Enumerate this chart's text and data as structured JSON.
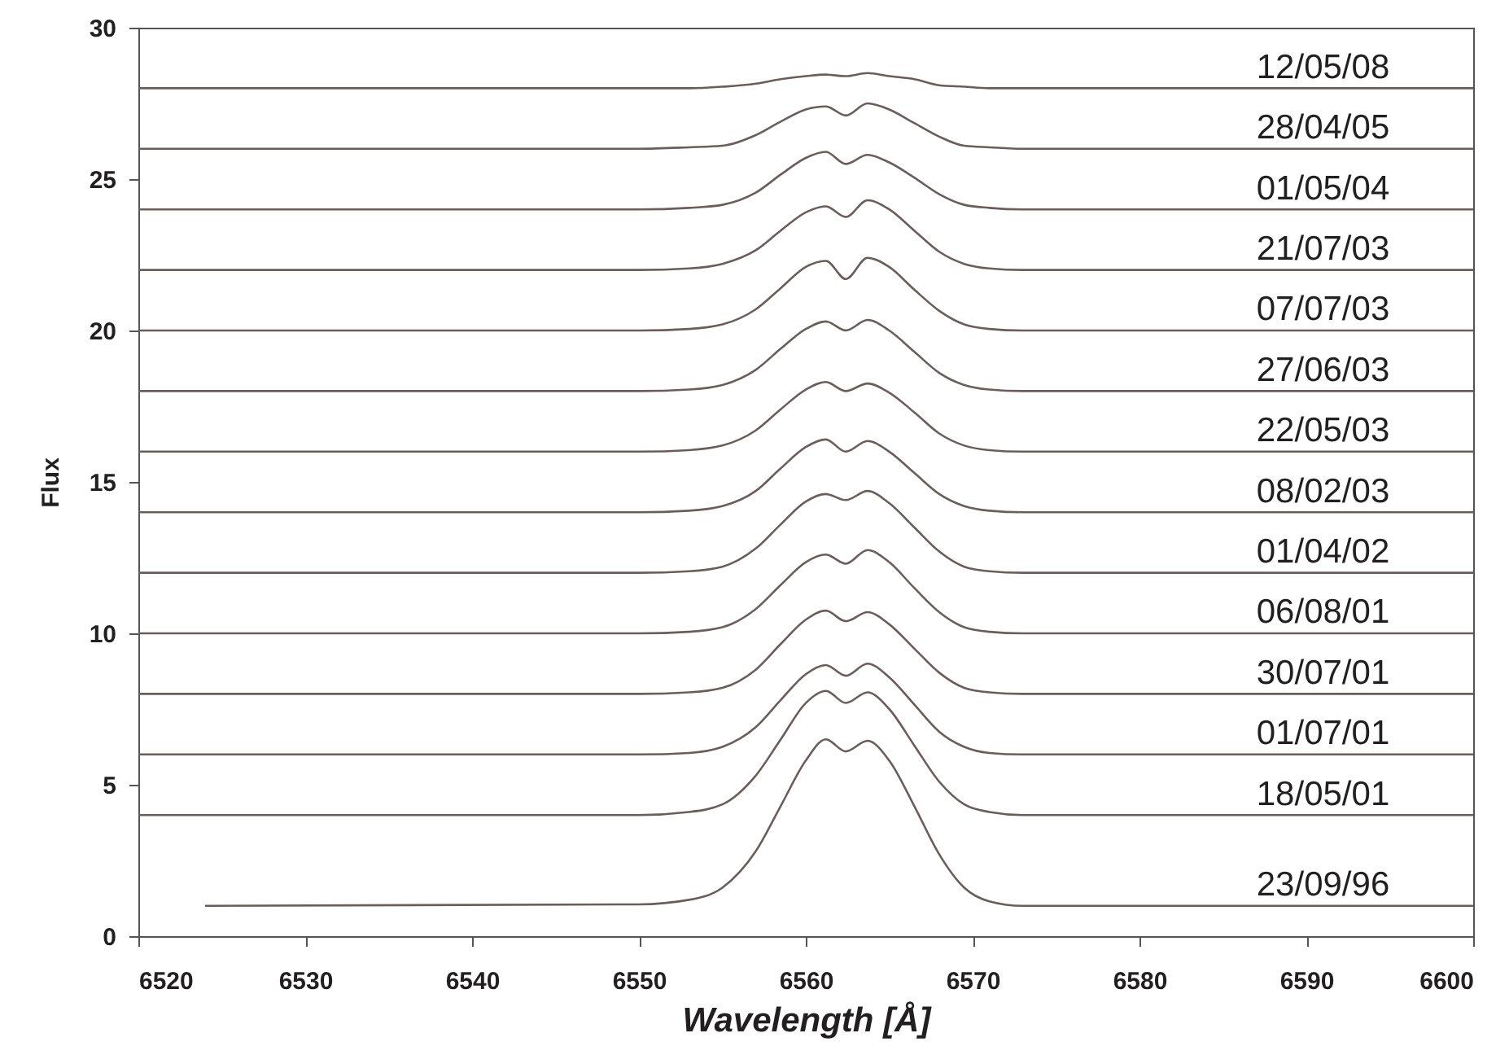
{
  "chart_data": {
    "type": "line",
    "xlabel": "Wavelength [Å]",
    "ylabel": "Flux",
    "x": [
      6520,
      6550,
      6553,
      6555,
      6557,
      6558.5,
      6560,
      6561.2,
      6562.4,
      6563.7,
      6565,
      6566.5,
      6568,
      6569.5,
      6571,
      6573,
      6600
    ],
    "xlim": [
      6520,
      6600
    ],
    "xticks": [
      6520,
      6530,
      6540,
      6550,
      6560,
      6570,
      6580,
      6590,
      6600
    ],
    "ylim": [
      0,
      30
    ],
    "yticks": [
      0,
      5,
      10,
      15,
      20,
      25,
      30
    ],
    "grid": false,
    "marker": "none",
    "line_style": "solid",
    "series": [
      {
        "name": "12/05/08",
        "color": "#6b5e5a",
        "values": [
          28,
          28,
          28,
          28.05,
          28.15,
          28.3,
          28.4,
          28.45,
          28.4,
          28.5,
          28.4,
          28.3,
          28.1,
          28.05,
          28,
          28,
          28
        ]
      },
      {
        "name": "28/04/05",
        "color": "#6b5e5a",
        "values": [
          26,
          26,
          26.05,
          26.1,
          26.45,
          26.9,
          27.3,
          27.4,
          27.1,
          27.5,
          27.3,
          26.85,
          26.4,
          26.1,
          26.05,
          26,
          26
        ]
      },
      {
        "name": "01/05/04",
        "color": "#6b5e5a",
        "values": [
          24,
          24,
          24.05,
          24.15,
          24.55,
          25.15,
          25.7,
          25.9,
          25.5,
          25.8,
          25.55,
          25.05,
          24.5,
          24.15,
          24.05,
          24,
          24
        ]
      },
      {
        "name": "21/07/03",
        "color": "#6b5e5a",
        "values": [
          22,
          22,
          22.05,
          22.2,
          22.65,
          23.3,
          23.9,
          24.1,
          23.75,
          24.3,
          24,
          23.3,
          22.6,
          22.2,
          22.05,
          22,
          22
        ]
      },
      {
        "name": "07/07/03",
        "color": "#6b5e5a",
        "values": [
          20,
          20,
          20.05,
          20.2,
          20.7,
          21.4,
          22.1,
          22.3,
          21.7,
          22.4,
          22.1,
          21.35,
          20.65,
          20.2,
          20.05,
          20,
          20
        ]
      },
      {
        "name": "27/06/03",
        "color": "#6b5e5a",
        "values": [
          18,
          18,
          18.05,
          18.2,
          18.7,
          19.4,
          20.05,
          20.3,
          20,
          20.35,
          20,
          19.3,
          18.6,
          18.2,
          18.05,
          18,
          18
        ]
      },
      {
        "name": "22/05/03",
        "color": "#6b5e5a",
        "values": [
          16,
          16,
          16.05,
          16.2,
          16.7,
          17.4,
          18.05,
          18.3,
          18,
          18.25,
          17.95,
          17.3,
          16.6,
          16.2,
          16.05,
          16,
          16
        ]
      },
      {
        "name": "08/02/03",
        "color": "#6b5e5a",
        "values": [
          14,
          14,
          14.05,
          14.2,
          14.7,
          15.45,
          16.15,
          16.4,
          16,
          16.35,
          16,
          15.3,
          14.6,
          14.2,
          14.05,
          14,
          14
        ]
      },
      {
        "name": "01/04/02",
        "color": "#6b5e5a",
        "values": [
          12,
          12,
          12.05,
          12.2,
          12.8,
          13.6,
          14.35,
          14.6,
          14.4,
          14.7,
          14.3,
          13.5,
          12.7,
          12.2,
          12.05,
          12,
          12
        ]
      },
      {
        "name": "06/08/01",
        "color": "#6b5e5a",
        "values": [
          10,
          10,
          10.05,
          10.2,
          10.8,
          11.6,
          12.35,
          12.6,
          12.3,
          12.75,
          12.35,
          11.5,
          10.7,
          10.2,
          10.05,
          10,
          10
        ]
      },
      {
        "name": "30/07/01",
        "color": "#6b5e5a",
        "values": [
          8,
          8,
          8.05,
          8.2,
          8.8,
          9.65,
          10.45,
          10.75,
          10.4,
          10.7,
          10.3,
          9.5,
          8.7,
          8.2,
          8.05,
          8,
          8
        ]
      },
      {
        "name": "01/07/01",
        "color": "#6b5e5a",
        "values": [
          6,
          6,
          6.05,
          6.25,
          6.9,
          7.8,
          8.65,
          8.95,
          8.6,
          9,
          8.55,
          7.65,
          6.75,
          6.25,
          6.05,
          6,
          6
        ]
      },
      {
        "name": "18/05/01",
        "color": "#6b5e5a",
        "values": [
          4,
          4,
          4.1,
          4.35,
          5.3,
          6.5,
          7.7,
          8.1,
          7.7,
          8.05,
          7.5,
          6.3,
          5.1,
          4.35,
          4.1,
          4,
          4
        ]
      },
      {
        "name": "23/09/96",
        "color": "#6b5e5a",
        "x": [
          6524,
          6550,
          6553,
          6555,
          6557,
          6558.5,
          6560,
          6561.2,
          6562.4,
          6563.7,
          6565,
          6566.5,
          6568,
          6569.5,
          6571,
          6573,
          6600
        ],
        "values": [
          1,
          1.05,
          1.2,
          1.6,
          2.8,
          4.3,
          5.8,
          6.5,
          6.1,
          6.45,
          5.8,
          4.3,
          2.7,
          1.6,
          1.15,
          1,
          1
        ]
      }
    ]
  }
}
